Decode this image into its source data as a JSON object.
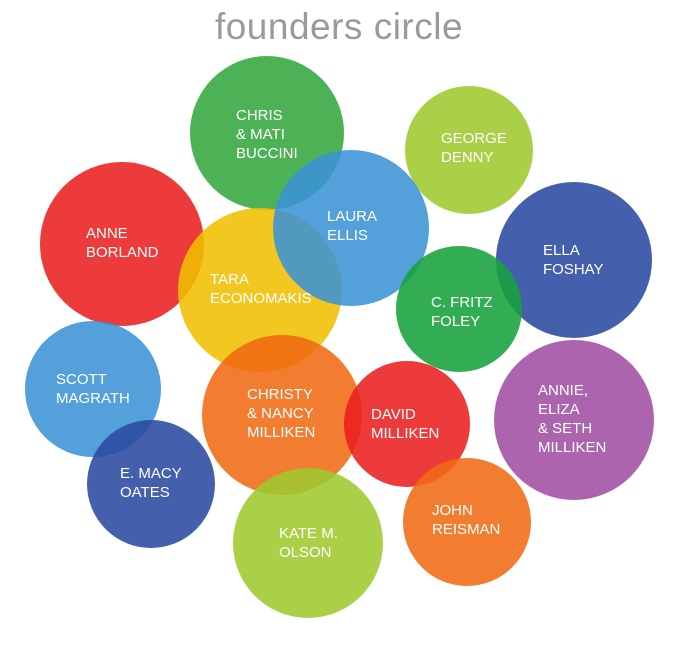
{
  "title": "founders circle",
  "colors": {
    "green": "#34a63f",
    "blue": "#3b93d6",
    "lime": "#9dc92e",
    "red": "#ea1f1f",
    "yellow": "#f0bf00",
    "navy": "#2a4aa0",
    "emerald": "#17a23c",
    "orange": "#f06a12",
    "purple": "#a04fa4"
  },
  "founders": [
    {
      "name": "CHRIS\n& MATI\nBUCCINI",
      "color": "green"
    },
    {
      "name": "GEORGE\nDENNY",
      "color": "lime"
    },
    {
      "name": "LAURA\nELLIS",
      "color": "blue"
    },
    {
      "name": "ANNE\nBORLAND",
      "color": "red"
    },
    {
      "name": "TARA\nECONOMAKIS",
      "color": "yellow"
    },
    {
      "name": "ELLA\nFOSHAY",
      "color": "navy"
    },
    {
      "name": "C. FRITZ\nFOLEY",
      "color": "emerald"
    },
    {
      "name": "SCOTT\nMAGRATH",
      "color": "blue"
    },
    {
      "name": "CHRISTY\n& NANCY\nMILLIKEN",
      "color": "orange"
    },
    {
      "name": "DAVID\nMILLIKEN",
      "color": "red"
    },
    {
      "name": "ANNIE,\nELIZA\n& SETH\nMILLIKEN",
      "color": "purple"
    },
    {
      "name": "E. MACY\nOATES",
      "color": "navy"
    },
    {
      "name": "JOHN\nREISMAN",
      "color": "orange"
    },
    {
      "name": "KATE M.\nOLSON",
      "color": "lime"
    }
  ]
}
